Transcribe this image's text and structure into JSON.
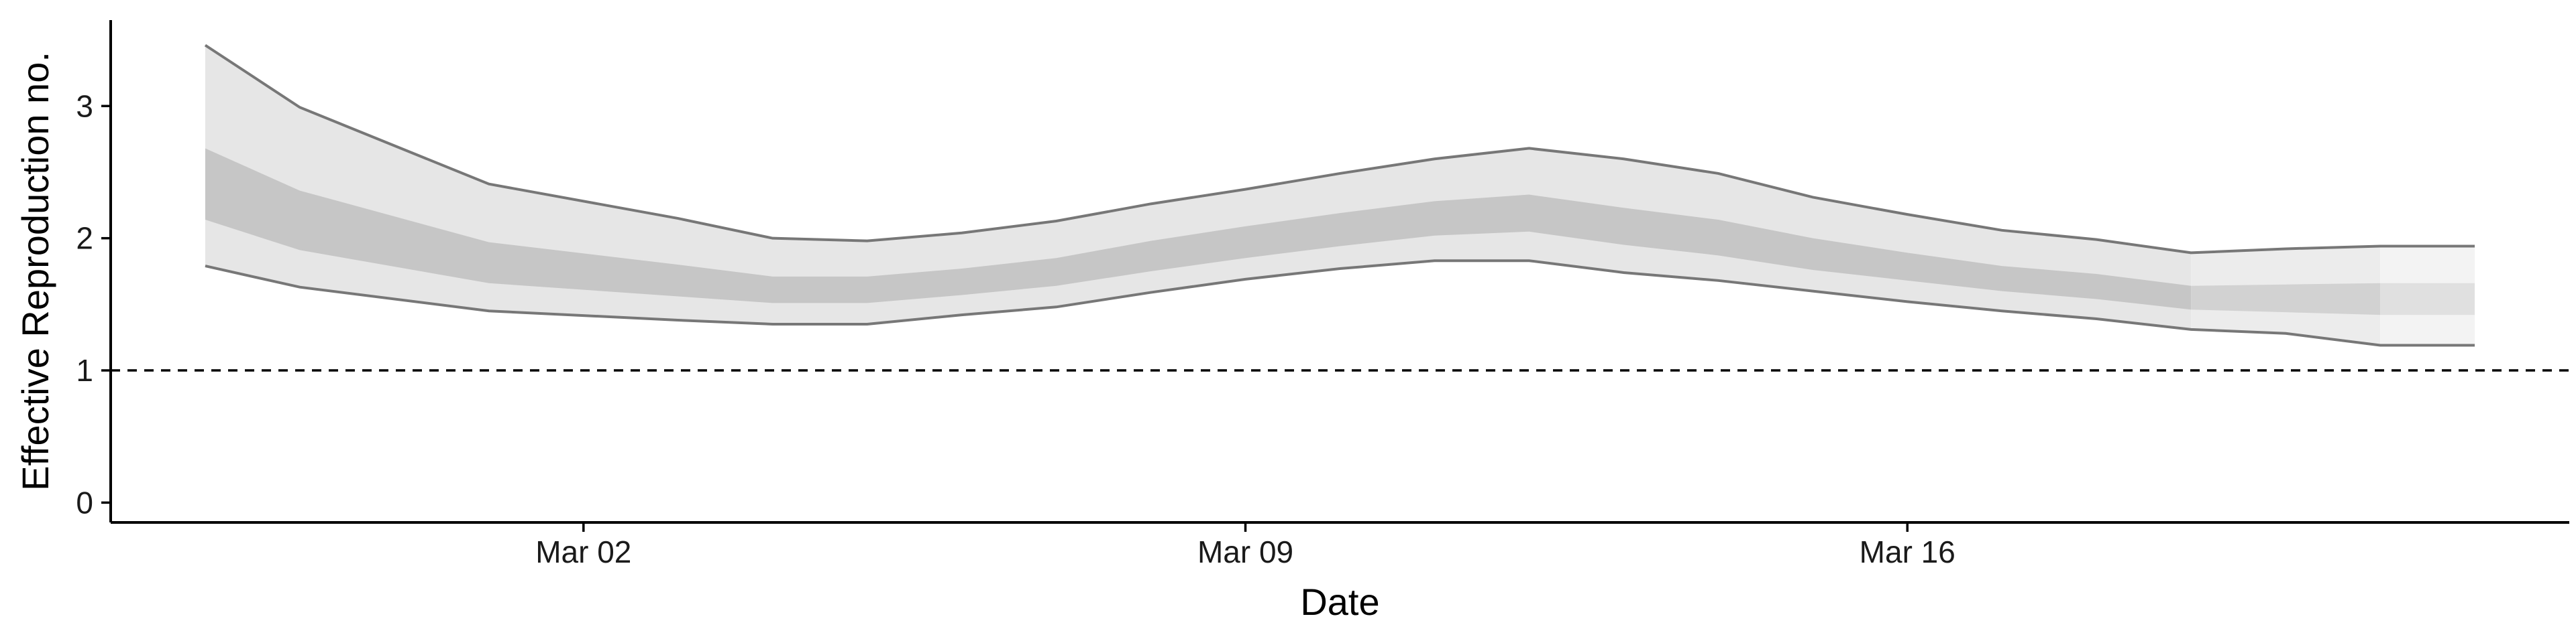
{
  "chart_data": {
    "type": "area",
    "title": "",
    "xlabel": "Date",
    "ylabel": "Effective Reproduction no.",
    "ylim": [
      -0.15,
      3.65
    ],
    "xlim": [
      "2020-02-26",
      "2020-03-23"
    ],
    "yticks": [
      0,
      1,
      2,
      3
    ],
    "xticks": [
      {
        "date": "2020-03-02",
        "label": "Mar 02"
      },
      {
        "date": "2020-03-09",
        "label": "Mar 09"
      },
      {
        "date": "2020-03-16",
        "label": "Mar 16"
      }
    ],
    "reference_line": {
      "y": 1,
      "style": "dashed"
    },
    "grid": false,
    "legend": "none",
    "series": [
      {
        "x": [
          "2020-02-27",
          "2020-02-28",
          "2020-03-01",
          "2020-03-03",
          "2020-03-04",
          "2020-03-05",
          "2020-03-06",
          "2020-03-07",
          "2020-03-08",
          "2020-03-09",
          "2020-03-10",
          "2020-03-11",
          "2020-03-12",
          "2020-03-13",
          "2020-03-14",
          "2020-03-15",
          "2020-03-16",
          "2020-03-17",
          "2020-03-18",
          "2020-03-19",
          "2020-03-20",
          "2020-03-21",
          "2020-03-22"
        ],
        "lower_90": [
          1.79,
          1.63,
          1.45,
          1.38,
          1.35,
          1.35,
          1.42,
          1.48,
          1.59,
          1.69,
          1.77,
          1.83,
          1.83,
          1.74,
          1.68,
          1.6,
          1.52,
          1.45,
          1.39,
          1.31,
          1.28,
          1.19,
          1.19
        ],
        "upper_90": [
          3.46,
          2.99,
          2.41,
          2.15,
          2.0,
          1.98,
          2.04,
          2.13,
          2.26,
          2.37,
          2.49,
          2.6,
          2.68,
          2.6,
          2.49,
          2.31,
          2.18,
          2.06,
          1.99,
          1.89,
          1.92,
          1.94,
          1.94
        ],
        "lower_50": [
          2.14,
          1.91,
          1.66,
          1.56,
          1.51,
          1.51,
          1.57,
          1.64,
          1.75,
          1.85,
          1.94,
          2.02,
          2.05,
          1.95,
          1.87,
          1.76,
          1.68,
          1.6,
          1.54,
          1.46,
          1.44,
          1.42,
          1.42
        ],
        "upper_50": [
          2.68,
          2.36,
          1.97,
          1.8,
          1.71,
          1.71,
          1.77,
          1.85,
          1.98,
          2.09,
          2.19,
          2.28,
          2.33,
          2.23,
          2.14,
          2.0,
          1.89,
          1.79,
          1.73,
          1.64,
          1.65,
          1.66,
          1.66
        ],
        "estimate_type": [
          "estimate",
          "estimate",
          "estimate",
          "estimate",
          "estimate",
          "estimate",
          "estimate",
          "estimate",
          "estimate",
          "estimate",
          "estimate",
          "estimate",
          "estimate",
          "estimate",
          "estimate",
          "estimate",
          "estimate",
          "estimate",
          "estimate",
          "estimate based on partial data",
          "estimate based on partial data",
          "forecast",
          "forecast"
        ]
      }
    ],
    "colors": {
      "outer_band": [
        "#e6e6e6",
        "#ececec",
        "#f3f3f3"
      ],
      "inner_band": [
        "#c6c6c6",
        "#d2d2d2",
        "#e0e0e0"
      ],
      "band_edge": "#777777",
      "axis": "#000000",
      "reference": "#000000"
    }
  }
}
